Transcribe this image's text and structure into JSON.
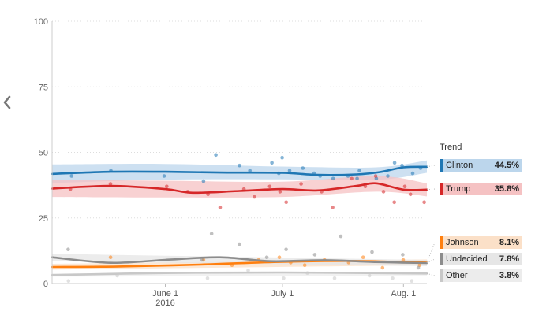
{
  "chart_data": {
    "type": "line",
    "x_axis": {
      "start": "2016-05-03",
      "end": "2016-08-07",
      "ticks": [
        {
          "date": "2016-06-01",
          "label": "June 1",
          "sublabel": "2016"
        },
        {
          "date": "2016-07-01",
          "label": "July 1",
          "sublabel": ""
        },
        {
          "date": "2016-08-01",
          "label": "Aug. 1",
          "sublabel": ""
        }
      ]
    },
    "y_axis": {
      "min": 0,
      "max": 100,
      "ticks": [
        0,
        25,
        50,
        75,
        100
      ]
    },
    "legend_title": "Trend",
    "series": [
      {
        "name": "Clinton",
        "value_label": "44.5%",
        "color": "#1f77b4",
        "band_color": "#bcd6ec",
        "trend": [
          [
            "2016-05-03",
            41.8
          ],
          [
            "2016-05-18",
            42.6
          ],
          [
            "2016-06-01",
            42.6
          ],
          [
            "2016-06-15",
            42.3
          ],
          [
            "2016-07-01",
            42.2
          ],
          [
            "2016-07-10",
            41.4
          ],
          [
            "2016-07-20",
            41.6
          ],
          [
            "2016-07-26",
            42.5
          ],
          [
            "2016-08-01",
            44.3
          ],
          [
            "2016-08-07",
            44.5
          ]
        ],
        "band": [
          [
            "2016-05-03",
            38.3,
            45.4
          ],
          [
            "2016-06-01",
            39.6,
            45.6
          ],
          [
            "2016-07-01",
            39.7,
            44.6
          ],
          [
            "2016-07-25",
            39.5,
            44.3
          ],
          [
            "2016-08-07",
            42.2,
            46.9
          ]
        ],
        "points": [
          [
            "2016-05-08",
            41
          ],
          [
            "2016-05-18",
            43
          ],
          [
            "2016-06-01",
            41
          ],
          [
            "2016-06-11",
            39
          ],
          [
            "2016-06-14",
            49
          ],
          [
            "2016-06-20",
            45
          ],
          [
            "2016-06-23",
            43
          ],
          [
            "2016-06-28",
            46
          ],
          [
            "2016-06-30",
            42
          ],
          [
            "2016-07-01",
            48
          ],
          [
            "2016-07-03",
            43
          ],
          [
            "2016-07-06",
            44
          ],
          [
            "2016-07-09",
            42
          ],
          [
            "2016-07-11",
            41
          ],
          [
            "2016-07-14",
            40
          ],
          [
            "2016-07-18",
            41
          ],
          [
            "2016-07-20",
            40
          ],
          [
            "2016-07-21",
            43
          ],
          [
            "2016-07-25",
            40
          ],
          [
            "2016-07-28",
            41
          ],
          [
            "2016-07-30",
            46
          ],
          [
            "2016-08-01",
            45
          ],
          [
            "2016-08-03",
            42
          ],
          [
            "2016-08-05",
            44
          ]
        ]
      },
      {
        "name": "Trump",
        "value_label": "35.8%",
        "color": "#d62728",
        "band_color": "#f5c2c3",
        "trend": [
          [
            "2016-05-03",
            36.2
          ],
          [
            "2016-05-18",
            37.2
          ],
          [
            "2016-06-01",
            36.0
          ],
          [
            "2016-06-08",
            34.6
          ],
          [
            "2016-06-20",
            35.3
          ],
          [
            "2016-07-01",
            36.0
          ],
          [
            "2016-07-10",
            35.5
          ],
          [
            "2016-07-20",
            37.2
          ],
          [
            "2016-07-25",
            38.2
          ],
          [
            "2016-08-01",
            35.8
          ],
          [
            "2016-08-07",
            35.8
          ]
        ],
        "band": [
          [
            "2016-05-03",
            33.0,
            39.5
          ],
          [
            "2016-06-01",
            32.8,
            39.2
          ],
          [
            "2016-07-01",
            33.0,
            38.8
          ],
          [
            "2016-07-25",
            35.0,
            41.0
          ],
          [
            "2016-08-07",
            33.2,
            38.2
          ]
        ],
        "points": [
          [
            "2016-05-08",
            36
          ],
          [
            "2016-05-18",
            38
          ],
          [
            "2016-06-01",
            37
          ],
          [
            "2016-06-07",
            35
          ],
          [
            "2016-06-12",
            34
          ],
          [
            "2016-06-15",
            29
          ],
          [
            "2016-06-21",
            36
          ],
          [
            "2016-06-24",
            33
          ],
          [
            "2016-06-28",
            37
          ],
          [
            "2016-06-30",
            35
          ],
          [
            "2016-07-02",
            31
          ],
          [
            "2016-07-06",
            38
          ],
          [
            "2016-07-11",
            35
          ],
          [
            "2016-07-14",
            29
          ],
          [
            "2016-07-19",
            40
          ],
          [
            "2016-07-22",
            37
          ],
          [
            "2016-07-25",
            41
          ],
          [
            "2016-07-27",
            35
          ],
          [
            "2016-07-30",
            31
          ],
          [
            "2016-08-01",
            37
          ],
          [
            "2016-08-03",
            34
          ],
          [
            "2016-08-06",
            31
          ]
        ]
      },
      {
        "name": "Johnson",
        "value_label": "8.1%",
        "color": "#ff7f0e",
        "band_color": "#fbe0c8",
        "trend": [
          [
            "2016-05-03",
            6.3
          ],
          [
            "2016-05-20",
            6.5
          ],
          [
            "2016-06-10",
            7.2
          ],
          [
            "2016-07-01",
            8.3
          ],
          [
            "2016-07-20",
            8.6
          ],
          [
            "2016-08-01",
            8.1
          ],
          [
            "2016-08-07",
            8.0
          ]
        ],
        "band": [
          [
            "2016-05-03",
            5.3,
            7.5
          ],
          [
            "2016-08-07",
            7.0,
            9.2
          ]
        ],
        "points": [
          [
            "2016-05-18",
            10
          ],
          [
            "2016-06-11",
            9
          ],
          [
            "2016-06-18",
            7
          ],
          [
            "2016-06-25",
            9
          ],
          [
            "2016-06-30",
            10
          ],
          [
            "2016-07-03",
            8
          ],
          [
            "2016-07-07",
            7
          ],
          [
            "2016-07-12",
            9
          ],
          [
            "2016-07-18",
            8
          ],
          [
            "2016-07-22",
            10
          ],
          [
            "2016-07-27",
            6
          ],
          [
            "2016-08-01",
            9
          ],
          [
            "2016-08-05",
            7
          ]
        ]
      },
      {
        "name": "Undecided",
        "value_label": "7.8%",
        "color": "#8c8c8c",
        "band_color": "#e6e6e6",
        "trend": [
          [
            "2016-05-03",
            10.0
          ],
          [
            "2016-05-18",
            7.9
          ],
          [
            "2016-06-01",
            9.0
          ],
          [
            "2016-06-15",
            10.0
          ],
          [
            "2016-06-28",
            8.5
          ],
          [
            "2016-07-12",
            8.9
          ],
          [
            "2016-07-25",
            8.2
          ],
          [
            "2016-08-07",
            7.8
          ]
        ],
        "band": [
          [
            "2016-05-03",
            8.5,
            11.3
          ],
          [
            "2016-08-07",
            6.6,
            9.0
          ]
        ],
        "points": [
          [
            "2016-05-07",
            13
          ],
          [
            "2016-06-10",
            9
          ],
          [
            "2016-06-13",
            19
          ],
          [
            "2016-06-20",
            15
          ],
          [
            "2016-06-27",
            10
          ],
          [
            "2016-07-02",
            13
          ],
          [
            "2016-07-09",
            11
          ],
          [
            "2016-07-16",
            18
          ],
          [
            "2016-07-24",
            12
          ],
          [
            "2016-08-01",
            11
          ],
          [
            "2016-08-05",
            6
          ]
        ]
      },
      {
        "name": "Other",
        "value_label": "3.8%",
        "color": "#c8c8c8",
        "band_color": "#ececec",
        "trend": [
          [
            "2016-05-03",
            3.2
          ],
          [
            "2016-06-01",
            4.0
          ],
          [
            "2016-07-01",
            4.2
          ],
          [
            "2016-08-07",
            3.8
          ]
        ],
        "band": [
          [
            "2016-05-03",
            2.6,
            3.8
          ],
          [
            "2016-08-07",
            3.1,
            4.4
          ]
        ],
        "points": [
          [
            "2016-05-07",
            1
          ],
          [
            "2016-05-20",
            3
          ],
          [
            "2016-06-12",
            2
          ],
          [
            "2016-06-22",
            5
          ],
          [
            "2016-07-01",
            2
          ],
          [
            "2016-07-07",
            4
          ],
          [
            "2016-07-14",
            2
          ],
          [
            "2016-07-23",
            3
          ],
          [
            "2016-07-29",
            2
          ],
          [
            "2016-08-03",
            1
          ]
        ]
      }
    ]
  }
}
